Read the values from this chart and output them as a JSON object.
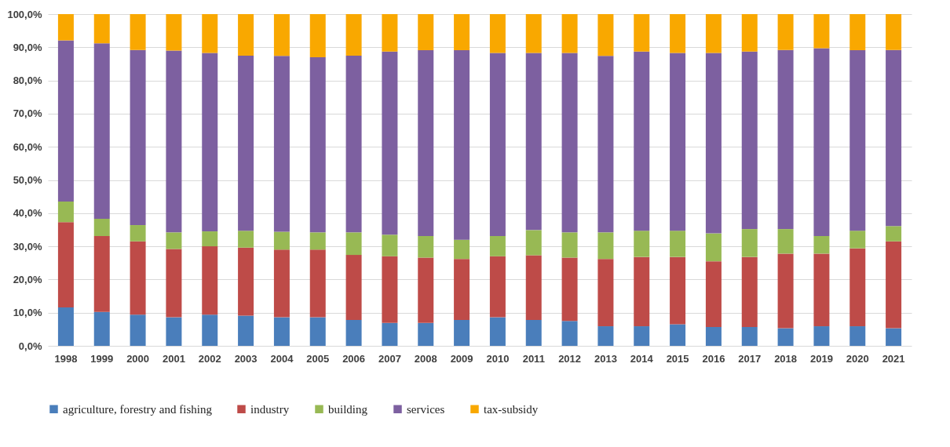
{
  "chart_data": {
    "type": "bar",
    "stacked": true,
    "categories": [
      "1998",
      "1999",
      "2000",
      "2001",
      "2002",
      "2003",
      "2004",
      "2005",
      "2006",
      "2007",
      "2008",
      "2009",
      "2010",
      "2011",
      "2012",
      "2013",
      "2014",
      "2015",
      "2016",
      "2017",
      "2018",
      "2019",
      "2020",
      "2021"
    ],
    "series": [
      {
        "name": "agriculture, forestry and fishing",
        "color": "#4a7ebb",
        "values": [
          11.6,
          10.2,
          9.4,
          8.6,
          9.4,
          9.1,
          8.6,
          8.6,
          7.8,
          6.9,
          6.9,
          7.8,
          8.6,
          7.8,
          7.5,
          5.9,
          5.9,
          6.5,
          5.7,
          5.7,
          5.3,
          5.9,
          5.9,
          5.3
        ]
      },
      {
        "name": "industry",
        "color": "#be4b48",
        "values": [
          25.7,
          22.9,
          22.1,
          20.6,
          20.6,
          20.5,
          20.4,
          20.4,
          19.6,
          20.1,
          19.7,
          18.4,
          18.4,
          19.5,
          19.1,
          20.3,
          20.9,
          20.3,
          19.8,
          21.1,
          22.5,
          21.9,
          23.5,
          26.2
        ]
      },
      {
        "name": "building",
        "color": "#98b954",
        "values": [
          6.2,
          5.2,
          4.9,
          5.0,
          4.5,
          5.1,
          5.4,
          5.2,
          6.8,
          6.5,
          6.5,
          5.8,
          6.1,
          7.6,
          7.6,
          8.0,
          7.9,
          7.9,
          8.4,
          8.4,
          7.4,
          5.3,
          5.3,
          4.6
        ]
      },
      {
        "name": "services",
        "color": "#7d60a0",
        "values": [
          48.6,
          52.9,
          52.8,
          54.8,
          53.8,
          52.8,
          53.0,
          52.8,
          53.3,
          55.2,
          56.0,
          57.1,
          55.2,
          53.4,
          54.1,
          53.2,
          54.0,
          53.6,
          54.4,
          53.5,
          54.0,
          56.6,
          54.4,
          53.1
        ]
      },
      {
        "name": "tax-subsidy",
        "color": "#f9a800",
        "values": [
          7.9,
          8.8,
          10.8,
          11.0,
          11.7,
          12.5,
          12.6,
          13.0,
          12.5,
          11.3,
          10.9,
          10.9,
          11.7,
          11.7,
          11.7,
          12.6,
          11.3,
          11.7,
          11.7,
          11.3,
          10.8,
          10.3,
          10.9,
          10.8
        ]
      }
    ],
    "ylim": [
      0,
      100
    ],
    "yticks": [
      {
        "value": 0,
        "label": "0,0%"
      },
      {
        "value": 10,
        "label": "10,0%"
      },
      {
        "value": 20,
        "label": "20,0%"
      },
      {
        "value": 30,
        "label": "30,0%"
      },
      {
        "value": 40,
        "label": "40,0%"
      },
      {
        "value": 50,
        "label": "50,0%"
      },
      {
        "value": 60,
        "label": "60,0%"
      },
      {
        "value": 70,
        "label": "70,0%"
      },
      {
        "value": 80,
        "label": "80,0%"
      },
      {
        "value": 90,
        "label": "90,0%"
      },
      {
        "value": 100,
        "label": "100,0%"
      }
    ],
    "grid": "y",
    "legend": "bottom"
  }
}
